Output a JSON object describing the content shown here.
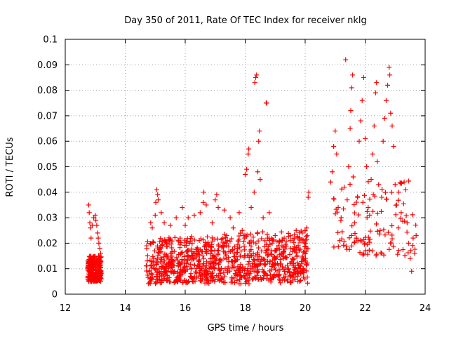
{
  "chart_data": {
    "type": "scatter",
    "title": "Day 350 of 2011, Rate Of TEC Index for receiver nklg",
    "xlabel": "GPS time / hours",
    "ylabel": "ROTI / TECUs",
    "xlim": [
      12,
      24
    ],
    "ylim": [
      0,
      0.1
    ],
    "xticks": [
      "12",
      "14",
      "16",
      "18",
      "20",
      "22",
      "24"
    ],
    "yticks": [
      "0",
      "0.01",
      "0.02",
      "0.03",
      "0.04",
      "0.05",
      "0.06",
      "0.07",
      "0.08",
      "0.09",
      "0.1"
    ],
    "grid": true,
    "marker": "+",
    "color": "#ff0000",
    "series": [
      {
        "points": [
          [
            12.78,
            0.035
          ],
          [
            12.8,
            0.032
          ],
          [
            12.82,
            0.028
          ],
          [
            12.84,
            0.026
          ],
          [
            12.86,
            0.022
          ],
          [
            12.9,
            0.027
          ],
          [
            12.95,
            0.03
          ],
          [
            13.0,
            0.031
          ],
          [
            13.02,
            0.029
          ],
          [
            13.05,
            0.027
          ],
          [
            13.08,
            0.024
          ],
          [
            13.1,
            0.022
          ],
          [
            13.12,
            0.02
          ],
          [
            13.15,
            0.018
          ],
          [
            13.18,
            0.016
          ],
          [
            14.85,
            0.028
          ],
          [
            14.9,
            0.026
          ],
          [
            15.0,
            0.031
          ],
          [
            15.02,
            0.036
          ],
          [
            15.05,
            0.041
          ],
          [
            15.08,
            0.039
          ],
          [
            15.1,
            0.037
          ],
          [
            15.2,
            0.032
          ],
          [
            15.3,
            0.028
          ],
          [
            15.5,
            0.027
          ],
          [
            15.7,
            0.03
          ],
          [
            15.9,
            0.034
          ],
          [
            16.0,
            0.027
          ],
          [
            16.1,
            0.03
          ],
          [
            16.3,
            0.031
          ],
          [
            16.5,
            0.032
          ],
          [
            16.6,
            0.036
          ],
          [
            16.62,
            0.04
          ],
          [
            16.7,
            0.035
          ],
          [
            16.9,
            0.028
          ],
          [
            17.0,
            0.037
          ],
          [
            17.05,
            0.039
          ],
          [
            17.1,
            0.034
          ],
          [
            17.3,
            0.033
          ],
          [
            17.5,
            0.03
          ],
          [
            17.6,
            0.026
          ],
          [
            17.8,
            0.032
          ],
          [
            17.9,
            0.025
          ],
          [
            18.0,
            0.047
          ],
          [
            18.05,
            0.049
          ],
          [
            18.1,
            0.055
          ],
          [
            18.12,
            0.057
          ],
          [
            18.2,
            0.034
          ],
          [
            18.3,
            0.04
          ],
          [
            18.32,
            0.083
          ],
          [
            18.35,
            0.085
          ],
          [
            18.38,
            0.086
          ],
          [
            18.42,
            0.048
          ],
          [
            18.45,
            0.06
          ],
          [
            18.48,
            0.064
          ],
          [
            18.5,
            0.045
          ],
          [
            18.6,
            0.03
          ],
          [
            18.7,
            0.075
          ],
          [
            18.72,
            0.075
          ],
          [
            18.75,
            0.022
          ],
          [
            18.8,
            0.032
          ],
          [
            18.9,
            0.02
          ],
          [
            19.0,
            0.023
          ],
          [
            19.1,
            0.019
          ],
          [
            19.3,
            0.022
          ],
          [
            19.5,
            0.021
          ],
          [
            19.7,
            0.025
          ],
          [
            19.9,
            0.024
          ],
          [
            20.0,
            0.025
          ],
          [
            20.05,
            0.026
          ],
          [
            20.1,
            0.038
          ],
          [
            20.12,
            0.04
          ],
          [
            20.85,
            0.044
          ],
          [
            20.9,
            0.048
          ],
          [
            20.95,
            0.058
          ],
          [
            21.0,
            0.064
          ],
          [
            21.05,
            0.055
          ],
          [
            21.1,
            0.034
          ],
          [
            21.15,
            0.021
          ],
          [
            21.2,
            0.03
          ],
          [
            21.3,
            0.042
          ],
          [
            21.35,
            0.092
          ],
          [
            21.4,
            0.037
          ],
          [
            21.45,
            0.05
          ],
          [
            21.5,
            0.065
          ],
          [
            21.52,
            0.072
          ],
          [
            21.55,
            0.081
          ],
          [
            21.58,
            0.086
          ],
          [
            21.6,
            0.046
          ],
          [
            21.65,
            0.028
          ],
          [
            21.7,
            0.022
          ],
          [
            21.75,
            0.038
          ],
          [
            21.8,
            0.06
          ],
          [
            21.85,
            0.068
          ],
          [
            21.9,
            0.076
          ],
          [
            21.95,
            0.085
          ],
          [
            22.0,
            0.061
          ],
          [
            22.05,
            0.05
          ],
          [
            22.1,
            0.034
          ],
          [
            22.15,
            0.031
          ],
          [
            22.2,
            0.045
          ],
          [
            22.25,
            0.055
          ],
          [
            22.3,
            0.066
          ],
          [
            22.35,
            0.079
          ],
          [
            22.38,
            0.083
          ],
          [
            22.4,
            0.052
          ],
          [
            22.45,
            0.043
          ],
          [
            22.5,
            0.025
          ],
          [
            22.55,
            0.038
          ],
          [
            22.6,
            0.06
          ],
          [
            22.65,
            0.069
          ],
          [
            22.7,
            0.076
          ],
          [
            22.75,
            0.082
          ],
          [
            22.8,
            0.089
          ],
          [
            22.82,
            0.086
          ],
          [
            22.85,
            0.071
          ],
          [
            22.9,
            0.066
          ],
          [
            22.95,
            0.058
          ],
          [
            23.0,
            0.043
          ],
          [
            23.05,
            0.035
          ],
          [
            23.1,
            0.026
          ],
          [
            23.2,
            0.032
          ],
          [
            23.3,
            0.044
          ],
          [
            23.35,
            0.041
          ],
          [
            23.4,
            0.028
          ],
          [
            23.45,
            0.02
          ],
          [
            23.5,
            0.014
          ],
          [
            23.55,
            0.009
          ],
          [
            23.6,
            0.022
          ],
          [
            23.65,
            0.016
          ],
          [
            23.7,
            0.023
          ]
        ],
        "clusters": [
          {
            "x_range": [
              12.75,
              13.2
            ],
            "y_range": [
              0.005,
              0.015
            ]
          },
          {
            "x_range": [
              14.7,
              20.1
            ],
            "y_range": [
              0.004,
              0.022
            ]
          },
          {
            "x_range": [
              20.9,
              23.7
            ],
            "y_range": [
              0.015,
              0.045
            ]
          }
        ]
      }
    ]
  }
}
